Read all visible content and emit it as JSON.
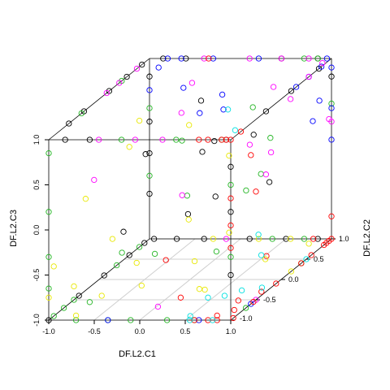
{
  "chart_data": {
    "type": "scatter3d",
    "axes": {
      "x": {
        "label": "DF.L2.C1",
        "range": [
          -1,
          1
        ],
        "ticks": [
          -1.0,
          -0.5,
          0.0,
          0.5,
          1.0
        ],
        "tick_labels": [
          "-1.0",
          "-0.5",
          "0.0",
          "0.5",
          "1.0"
        ]
      },
      "y": {
        "label": "DF.L2.C2",
        "range": [
          -1,
          1
        ],
        "ticks": [
          -1.0,
          -0.5,
          0.0,
          0.5,
          1.0
        ],
        "tick_labels": [
          "-1.0",
          "-0.5",
          "0.0",
          "0.5",
          "1.0"
        ]
      },
      "z": {
        "label": "DF.L2.C3",
        "range": [
          -1,
          1
        ],
        "ticks": [
          -1.0,
          -0.5,
          0.0,
          0.5,
          1.0
        ],
        "tick_labels": [
          "-1.0",
          "-0.5",
          "0.0",
          "0.5",
          "1.0"
        ]
      }
    },
    "floor_grid": true,
    "box": true,
    "colors": {
      "black": "#000000",
      "green": "#22b522",
      "blue": "#0000ff",
      "magenta": "#ff00ff",
      "red": "#ff0000",
      "yellow": "#e8e800",
      "cyan": "#00e0e0"
    },
    "series": [
      {
        "color": "black",
        "points": [
          [
            -1,
            -1,
            -1
          ],
          [
            -0.82,
            -1,
            1
          ],
          [
            -0.55,
            -1,
            1
          ],
          [
            -1,
            -0.6,
            1
          ],
          [
            -1,
            -0.3,
            1
          ],
          [
            -1,
            0.2,
            1
          ],
          [
            -1,
            0.55,
            1
          ],
          [
            -1,
            0.85,
            1
          ],
          [
            -0.85,
            1,
            1
          ],
          [
            -0.6,
            1,
            1
          ],
          [
            -1,
            1,
            0.8
          ],
          [
            -1,
            1,
            0.3
          ],
          [
            -1,
            1,
            -0.05
          ],
          [
            -1,
            1,
            -0.5
          ],
          [
            -1,
            0.9,
            -1
          ],
          [
            -1,
            0.6,
            -1
          ],
          [
            -1,
            0.1,
            -1
          ],
          [
            -1,
            -0.4,
            -1
          ],
          [
            -0.95,
            1,
            -1
          ],
          [
            -0.7,
            1,
            -1
          ],
          [
            -0.4,
            1,
            -1
          ],
          [
            0.1,
            1,
            -1
          ],
          [
            0.5,
            1,
            -1
          ],
          [
            0.85,
            1,
            -1
          ],
          [
            0.45,
            1,
            1
          ],
          [
            0.85,
            1,
            1
          ],
          [
            1,
            1,
            0.8
          ],
          [
            1,
            0.75,
            1
          ],
          [
            1,
            0.2,
            1
          ],
          [
            1,
            -0.3,
            1
          ],
          [
            0.95,
            -1,
            1
          ],
          [
            1,
            -1,
            0.7
          ],
          [
            1,
            -1,
            0.2
          ],
          [
            1,
            -1,
            -0.5
          ],
          [
            -0.4,
            -0.6,
            -0.2
          ],
          [
            0.1,
            0.3,
            0.4
          ],
          [
            -0.3,
            0.5,
            -0.5
          ],
          [
            0.5,
            -0.4,
            0.1
          ],
          [
            0.2,
            0.9,
            0.2
          ],
          [
            -0.6,
            0.2,
            0.3
          ],
          [
            0.65,
            0.4,
            -0.1
          ],
          [
            0.3,
            -0.3,
            0.55
          ],
          [
            -0.35,
            0.85,
            0.6
          ]
        ]
      },
      {
        "color": "green",
        "points": [
          [
            -1,
            -0.9,
            -1
          ],
          [
            -0.7,
            -1,
            -1
          ],
          [
            -0.35,
            -1,
            -1
          ],
          [
            -0.1,
            -1,
            -1
          ],
          [
            -1,
            -0.7,
            -1
          ],
          [
            -1,
            -0.5,
            -1
          ],
          [
            -1,
            0.35,
            -1
          ],
          [
            -1,
            0.8,
            -1
          ],
          [
            -1,
            -1,
            0.85
          ],
          [
            -1,
            -1,
            0.2
          ],
          [
            -1,
            -1,
            -0.3
          ],
          [
            -1,
            -1,
            -0.65
          ],
          [
            -1,
            -0.35,
            1
          ],
          [
            -1,
            0.45,
            1
          ],
          [
            -1,
            1,
            0.45
          ],
          [
            -1,
            1,
            -0.3
          ],
          [
            -0.2,
            -1,
            1
          ],
          [
            0.4,
            -1,
            1
          ],
          [
            0.9,
            -1,
            1
          ],
          [
            1,
            -1,
            0.5
          ],
          [
            1,
            -1,
            -0.3
          ],
          [
            1,
            -0.7,
            -1
          ],
          [
            0.7,
            1,
            1
          ],
          [
            0.85,
            1,
            1
          ],
          [
            1,
            1,
            0.5
          ],
          [
            1,
            0.4,
            -1
          ],
          [
            0.35,
            1,
            -1
          ],
          [
            0.7,
            1,
            -1
          ],
          [
            0.6,
            -1,
            -1
          ],
          [
            0.3,
            -1,
            -1
          ],
          [
            0.0,
            -0.7,
            -0.4
          ],
          [
            -0.5,
            -0.45,
            -0.5
          ],
          [
            0.3,
            -0.6,
            0.2
          ],
          [
            0.55,
            0.6,
            0.3
          ],
          [
            -0.2,
            0.2,
            0.45
          ],
          [
            0.4,
            -0.2,
            -0.6
          ],
          [
            1,
            -0.4,
            0.35
          ],
          [
            0.8,
            -0.2,
            1
          ],
          [
            -0.55,
            -1,
            -0.8
          ],
          [
            0.2,
            0.75,
            -0.35
          ]
        ]
      },
      {
        "color": "blue",
        "points": [
          [
            -0.65,
            1,
            1
          ],
          [
            -0.8,
            1,
            1
          ],
          [
            -0.3,
            1,
            1
          ],
          [
            0.2,
            1,
            1
          ],
          [
            0.95,
            1,
            1
          ],
          [
            1,
            1,
            0.9
          ],
          [
            1,
            1,
            0.45
          ],
          [
            1,
            1,
            0.1
          ],
          [
            1,
            0.8,
            1
          ],
          [
            1,
            0.55,
            1
          ],
          [
            1,
            0.3,
            1
          ],
          [
            0.95,
            0.85,
            0.6
          ],
          [
            -0.2,
            1,
            0.6
          ],
          [
            -1,
            1,
            0.65
          ],
          [
            -0.9,
            1,
            0.9
          ],
          [
            1,
            -0.6,
            -1
          ],
          [
            0.65,
            -1,
            -1
          ],
          [
            -0.35,
            -1,
            -1
          ],
          [
            0.2,
            0.3,
            0.75
          ],
          [
            0.05,
            0.1,
            0.8
          ],
          [
            0.85,
            0.9,
            0.35
          ],
          [
            -0.35,
            0.5,
            0.9
          ]
        ]
      },
      {
        "color": "magenta",
        "points": [
          [
            -0.45,
            -1,
            1
          ],
          [
            -0.05,
            -1,
            1
          ],
          [
            0.25,
            -1,
            1
          ],
          [
            -1,
            0.15,
            1
          ],
          [
            -1,
            0.4,
            1
          ],
          [
            -1,
            0.75,
            1
          ],
          [
            -0.4,
            1,
            1
          ],
          [
            0.1,
            1,
            1
          ],
          [
            0.45,
            1,
            1
          ],
          [
            0.75,
            1,
            1
          ],
          [
            1,
            0.55,
            1
          ],
          [
            1,
            -0.5,
            -1
          ],
          [
            1,
            0.95,
            0.35
          ],
          [
            1,
            1,
            0.3
          ],
          [
            1,
            -0.3,
            0.3
          ],
          [
            1,
            -0.2,
            0.5
          ],
          [
            0.95,
            -1,
            -0.1
          ],
          [
            0.2,
            -1,
            -0.85
          ],
          [
            0.75,
            0.3,
            1
          ],
          [
            -1,
            -0.1,
            0.15
          ],
          [
            -0.4,
            0.55,
            0.6
          ],
          [
            0.55,
            1,
            0.55
          ],
          [
            0.9,
            1,
            0.95
          ],
          [
            0.3,
            -0.7,
            0.25
          ],
          [
            0.6,
            0.1,
            0.45
          ],
          [
            -0.2,
            0.4,
            1
          ]
        ]
      },
      {
        "color": "red",
        "points": [
          [
            0.65,
            -1,
            1
          ],
          [
            0.75,
            -1,
            1
          ],
          [
            0.9,
            -1,
            1
          ],
          [
            0.95,
            -1,
            1
          ],
          [
            1,
            -1,
            1
          ],
          [
            1,
            -0.8,
            1
          ],
          [
            1,
            1,
            -1
          ],
          [
            1,
            0.95,
            -1
          ],
          [
            1,
            0.85,
            -1
          ],
          [
            1,
            0.9,
            -1
          ],
          [
            1,
            0.6,
            -1
          ],
          [
            1,
            0.4,
            -1
          ],
          [
            1,
            -0.1,
            -1
          ],
          [
            0.95,
            -0.3,
            -1
          ],
          [
            1,
            -0.55,
            -1
          ],
          [
            0.9,
            -0.75,
            -1
          ],
          [
            1,
            -0.95,
            -1
          ],
          [
            0.85,
            -1,
            -1
          ],
          [
            0.75,
            -1,
            -1
          ],
          [
            0.6,
            -1,
            -1
          ],
          [
            0.45,
            -1,
            -0.75
          ],
          [
            0.85,
            -1,
            -0.95
          ],
          [
            0.95,
            -0.2,
            -0.65
          ],
          [
            1,
            -1,
            0.35
          ],
          [
            1,
            -1,
            0.05
          ],
          [
            1,
            -1,
            -0.2
          ],
          [
            1,
            -0.6,
            0.65
          ],
          [
            1,
            -0.5,
            0.2
          ],
          [
            1,
            1,
            -0.75
          ],
          [
            0.8,
            1,
            -1
          ],
          [
            1,
            -0.85,
            -0.85
          ],
          [
            -0.35,
            1,
            1
          ],
          [
            -0.1,
            -0.3,
            -0.65
          ]
        ]
      },
      {
        "color": "yellow",
        "points": [
          [
            -1,
            -1,
            -0.75
          ],
          [
            -1,
            -0.9,
            -0.45
          ],
          [
            -1,
            0.6,
            0.2
          ],
          [
            -1,
            0.8,
            0.4
          ],
          [
            -0.7,
            -1,
            -0.95
          ],
          [
            -0.75,
            -0.4,
            -1
          ],
          [
            -0.45,
            -0.15,
            -1
          ],
          [
            0.3,
            -0.25,
            -1
          ],
          [
            -0.2,
            0.45,
            -1
          ],
          [
            0.55,
            0.5,
            -1
          ],
          [
            1,
            0.2,
            -1
          ],
          [
            -0.3,
            1,
            -1
          ],
          [
            0.2,
            1,
            -1
          ],
          [
            0.55,
            1,
            -1
          ],
          [
            1,
            0.55,
            -0.85
          ],
          [
            0.6,
            -0.9,
            -0.7
          ],
          [
            -0.65,
            -0.9,
            0.3
          ],
          [
            -0.2,
            -0.7,
            -0.5
          ],
          [
            0.15,
            -0.3,
            -0.2
          ],
          [
            -0.15,
            0.25,
            0.6
          ],
          [
            0.4,
            0.05,
            0.35
          ],
          [
            -0.3,
            -1,
            -0.1
          ],
          [
            0.65,
            -0.4,
            -0.3
          ],
          [
            -1,
            -0.5,
            -0.85
          ]
        ]
      },
      {
        "color": "cyan",
        "points": [
          [
            0.55,
            -1,
            -1
          ],
          [
            0.5,
            -0.9,
            -1
          ],
          [
            0.8,
            -1,
            -1
          ],
          [
            0.6,
            -0.4,
            -1
          ],
          [
            0.9,
            -0.2,
            -1
          ],
          [
            1,
            0.5,
            -1
          ],
          [
            0.75,
            -1,
            -0.75
          ],
          [
            0.55,
            -0.1,
            0.7
          ],
          [
            0.25,
            0.3,
            0.75
          ],
          [
            1,
            -0.45,
            -0.3
          ],
          [
            0.9,
            -0.6,
            -0.85
          ],
          [
            0.45,
            0.6,
            -1
          ]
        ]
      }
    ]
  }
}
